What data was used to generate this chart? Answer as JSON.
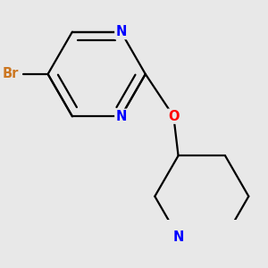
{
  "bg_color": "#e8e8e8",
  "bond_color": "#000000",
  "bond_width": 1.6,
  "atom_colors": {
    "Br": "#cc7722",
    "N": "#0000ff",
    "O": "#ff0000",
    "C": "#000000"
  },
  "font_size_atom": 10.5
}
